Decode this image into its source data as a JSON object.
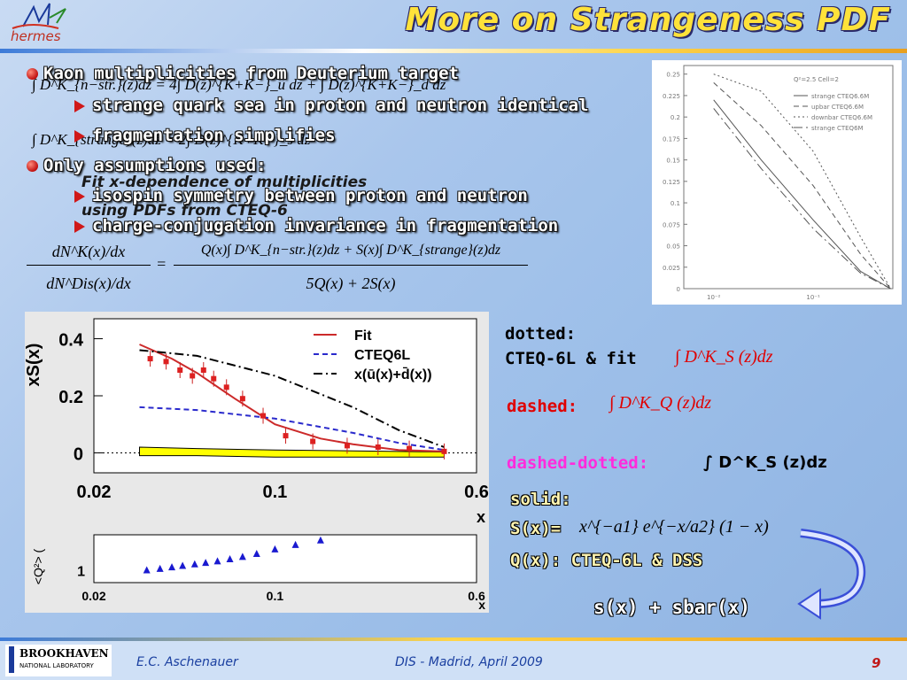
{
  "header": {
    "logo_text": "hermes",
    "title": "More on Strangeness PDF"
  },
  "bullets": [
    {
      "text": "Kaon multiplicities from Deuterium target",
      "subs": [
        "strange quark sea in proton and neutron identical",
        "fragmentation simplifies"
      ]
    },
    {
      "text": "Only assumptions used:",
      "subs": [
        "isospin symmetry between proton and neutron",
        "charge-conjugation invariance in fragmentation"
      ]
    }
  ],
  "overlay": {
    "line1": "Fit x-dependence of multiplicities",
    "line2": "using PDFs from CTEQ-6"
  },
  "formulas": {
    "f1": "∫ D^K_{n−str.}(z)dz = 4∫ D(z)^{K+K−}_u dz + ∫ D(z)^{K+K−}_d dz",
    "f2": "∫ D^K_{strange}(z)dz = 2∫ D(z)^{K+K−}_s dz",
    "main_num": "Q(x)∫ D^K_{n−str.}(z)dz + S(x)∫ D^K_{strange}(z)dz",
    "main_den": "5Q(x) + 2S(x)",
    "main_lhs_num": "dN^K(x)/dx",
    "main_lhs_den": "dN^Dis(x)/dx"
  },
  "descriptions": {
    "dotted_label": "dotted:",
    "dotted_text": "CTEQ-6L & fit",
    "dotted_formula": "∫ D^K_S (z)dz",
    "dashed_label": "dashed:",
    "dashed_formula": "∫ D^K_Q (z)dz",
    "dashdot_label": "dashed-dotted:",
    "dashdot_formula": "∫ D^K_S (z)dz",
    "solid_label": "solid:",
    "solid_lhs": "S(x)=",
    "solid_formula": "x^{−a1} e^{−x/a2} (1 − x)",
    "q_text": "Q(x): CTEQ-6L & DSS",
    "sum_text": "s(x) + sbar(x)"
  },
  "footer": {
    "lab_name": "BROOKHAVEN",
    "lab_sub": "NATIONAL LABORATORY",
    "author": "E.C. Aschenauer",
    "conference": "DIS - Madrid, April 2009",
    "page": "9"
  },
  "colors": {
    "title": "#ffe23a",
    "accent_red": "#e00000",
    "pink": "#ff2cdc",
    "band": "#ffff00"
  },
  "chart_data": [
    {
      "type": "scatter",
      "ylabel": "xS(x)",
      "xlabel": "x",
      "xscale": "log",
      "xlim": [
        0.02,
        0.6
      ],
      "ylim": [
        -0.07,
        0.47
      ],
      "x_ticks": [
        "0.02",
        "0.1",
        "0.6"
      ],
      "y_ticks": [
        "0",
        "0.2",
        "0.4"
      ],
      "legend": [
        "Fit",
        "CTEQ6L",
        "x(ū(x)+d̄(x))"
      ],
      "points": {
        "x": [
          0.033,
          0.038,
          0.043,
          0.048,
          0.053,
          0.058,
          0.065,
          0.075,
          0.09,
          0.11,
          0.14,
          0.19,
          0.25,
          0.33,
          0.45
        ],
        "y": [
          0.33,
          0.32,
          0.29,
          0.27,
          0.29,
          0.26,
          0.23,
          0.19,
          0.13,
          0.06,
          0.04,
          0.025,
          0.02,
          0.015,
          0.005
        ]
      },
      "series": [
        {
          "name": "Fit",
          "style": "solid",
          "color": "#cc2a2a",
          "x": [
            0.03,
            0.04,
            0.05,
            0.07,
            0.1,
            0.15,
            0.2,
            0.3,
            0.45
          ],
          "y": [
            0.38,
            0.33,
            0.28,
            0.19,
            0.1,
            0.05,
            0.03,
            0.01,
            0.005
          ]
        },
        {
          "name": "CTEQ6L",
          "style": "dashed",
          "color": "#2a2acc",
          "x": [
            0.03,
            0.05,
            0.1,
            0.2,
            0.3,
            0.45
          ],
          "y": [
            0.16,
            0.15,
            0.12,
            0.07,
            0.035,
            0.01
          ]
        },
        {
          "name": "x(ū(x)+d̄(x))",
          "style": "dashdot",
          "color": "#000000",
          "x": [
            0.03,
            0.05,
            0.1,
            0.2,
            0.3,
            0.45
          ],
          "y": [
            0.36,
            0.34,
            0.27,
            0.16,
            0.08,
            0.02
          ]
        }
      ],
      "band": {
        "x": [
          0.03,
          0.05,
          0.1,
          0.2,
          0.3,
          0.45
        ],
        "low": [
          -0.01,
          -0.01,
          -0.015,
          -0.015,
          -0.015,
          -0.015
        ],
        "high": [
          0.02,
          0.015,
          0.01,
          0.007,
          0.005,
          0.003
        ]
      },
      "sub_panel": {
        "ylabel": "<Q²> (",
        "y_ticks": [
          "1"
        ],
        "x_ticks": [
          "0.02",
          "0.1",
          "0.6"
        ],
        "xlabel": "x",
        "points_x": [
          0.032,
          0.036,
          0.04,
          0.044,
          0.049,
          0.054,
          0.06,
          0.067,
          0.075,
          0.085,
          0.1,
          0.12,
          0.15
        ],
        "points_y": [
          1.0,
          1.05,
          1.1,
          1.15,
          1.2,
          1.25,
          1.3,
          1.37,
          1.45,
          1.55,
          1.7,
          1.85,
          2.0
        ]
      }
    },
    {
      "type": "line",
      "xscale": "log",
      "x_ticks": [
        "10⁻²",
        "10⁻¹"
      ],
      "y_ticks": [
        "0",
        "0.025",
        "0.05",
        "0.075",
        "0.1",
        "0.125",
        "0.15",
        "0.175",
        "0.2",
        "0.225",
        "0.25"
      ],
      "legend_title": "Q²=2.5   Cell=2",
      "legend": [
        "strange  CTEQ6.6M",
        "upbar   CTEQ6.6M",
        "downbar CTEQ6.6M",
        "strange  CTEQ6M"
      ],
      "series": [
        {
          "name": "strange  CTEQ6.6M",
          "style": "solid",
          "x": [
            0.01,
            0.03,
            0.1,
            0.3,
            0.6
          ],
          "y": [
            0.22,
            0.15,
            0.08,
            0.02,
            0.0
          ]
        },
        {
          "name": "upbar   CTEQ6.6M",
          "style": "dashed",
          "x": [
            0.01,
            0.03,
            0.1,
            0.3,
            0.6
          ],
          "y": [
            0.24,
            0.19,
            0.12,
            0.04,
            0.0
          ]
        },
        {
          "name": "downbar CTEQ6.6M",
          "style": "dotted",
          "x": [
            0.01,
            0.03,
            0.1,
            0.3,
            0.6
          ],
          "y": [
            0.25,
            0.23,
            0.16,
            0.06,
            0.0
          ]
        },
        {
          "name": "strange  CTEQ6M",
          "style": "dashdot",
          "x": [
            0.01,
            0.03,
            0.1,
            0.3,
            0.6
          ],
          "y": [
            0.21,
            0.14,
            0.07,
            0.018,
            0.0
          ]
        }
      ]
    }
  ]
}
